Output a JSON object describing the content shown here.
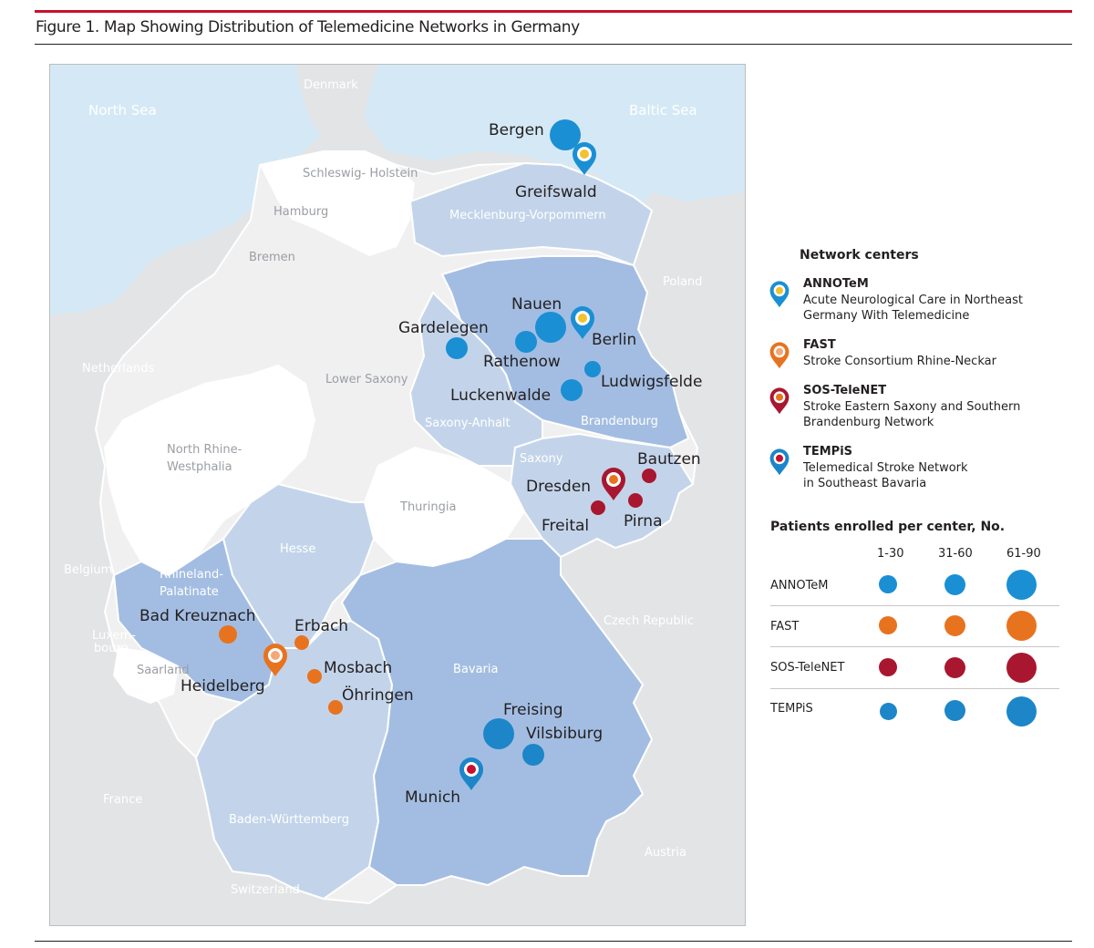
{
  "figure": {
    "title": "Figure 1. Map Showing Distribution of Telemedicine Networks in Germany"
  },
  "colors": {
    "sea": "#d4e9f5",
    "neighbor": "#e3e4e6",
    "state_white": "#ffffff",
    "state_light": "#f0f0f1",
    "network_light": "#c3d4ea",
    "network_dark": "#a3bde2",
    "annotem": "#1a8fd4",
    "fast": "#e8731f",
    "sos": "#a8172f",
    "tempis": "#1c86c8",
    "accent_bar": "#c8102e"
  },
  "map": {
    "seas": [
      "North Sea",
      "Baltic Sea"
    ],
    "countries": [
      "Denmark",
      "Poland",
      "Netherlands",
      "Belgium",
      "Luxem-",
      "bourg",
      "France",
      "Czech Republic",
      "Austria",
      "Switzerland"
    ],
    "states": {
      "schleswig": "Schleswig- Holstein",
      "hamburg": "Hamburg",
      "bremen": "Bremen",
      "lower_saxony": "Lower Saxony",
      "mv": "Mecklenburg-Vorpommern",
      "brandenburg": "Brandenburg",
      "berlin": "Berlin",
      "saxony_anhalt": "Saxony-Anhalt",
      "saxony": "Saxony",
      "thuringia": "Thuringia",
      "nrw_1": "North Rhine-",
      "nrw_2": "Westphalia",
      "hesse": "Hesse",
      "rp_1": "Rhineland-",
      "rp_2": "Palatinate",
      "saarland": "Saarland",
      "bavaria": "Bavaria",
      "bw": "Baden-Württemberg"
    },
    "cities": {
      "bergen": "Bergen",
      "greifswald": "Greifswald",
      "nauen": "Nauen",
      "gardelegen": "Gardelegen",
      "rathenow": "Rathenow",
      "berlin": "Berlin",
      "ludwigsfelde": "Ludwigsfelde",
      "luckenwalde": "Luckenwalde",
      "bautzen": "Bautzen",
      "dresden": "Dresden",
      "freital": "Freital",
      "pirna": "Pirna",
      "bad_kreuznach": "Bad Kreuznach",
      "erbach": "Erbach",
      "heidelberg": "Heidelberg",
      "mosbach": "Mosbach",
      "oehringen": "Öhringen",
      "freising": "Freising",
      "vilsbiburg": "Vilsbiburg",
      "munich": "Munich"
    }
  },
  "legend": {
    "heading": "Network centers",
    "networks": [
      {
        "name": "ANNOTeM",
        "desc1": "Acute Neurological Care in Northeast",
        "desc2": "Germany With Telemedicine"
      },
      {
        "name": "FAST",
        "desc1": "Stroke Consortium Rhine-Neckar",
        "desc2": ""
      },
      {
        "name": "SOS-TeleNET",
        "desc1": "Stroke Eastern Saxony and Southern",
        "desc2": "Brandenburg Network"
      },
      {
        "name": "TEMPiS",
        "desc1": "Telemedical Stroke Network",
        "desc2": "in Southeast Bavaria"
      }
    ],
    "patients_heading": "Patients enrolled per center, No.",
    "size_classes": [
      "1-30",
      "31-60",
      "61-90"
    ],
    "rows": [
      "ANNOTeM",
      "FAST",
      "SOS-TeleNET",
      "TEMPiS"
    ]
  }
}
